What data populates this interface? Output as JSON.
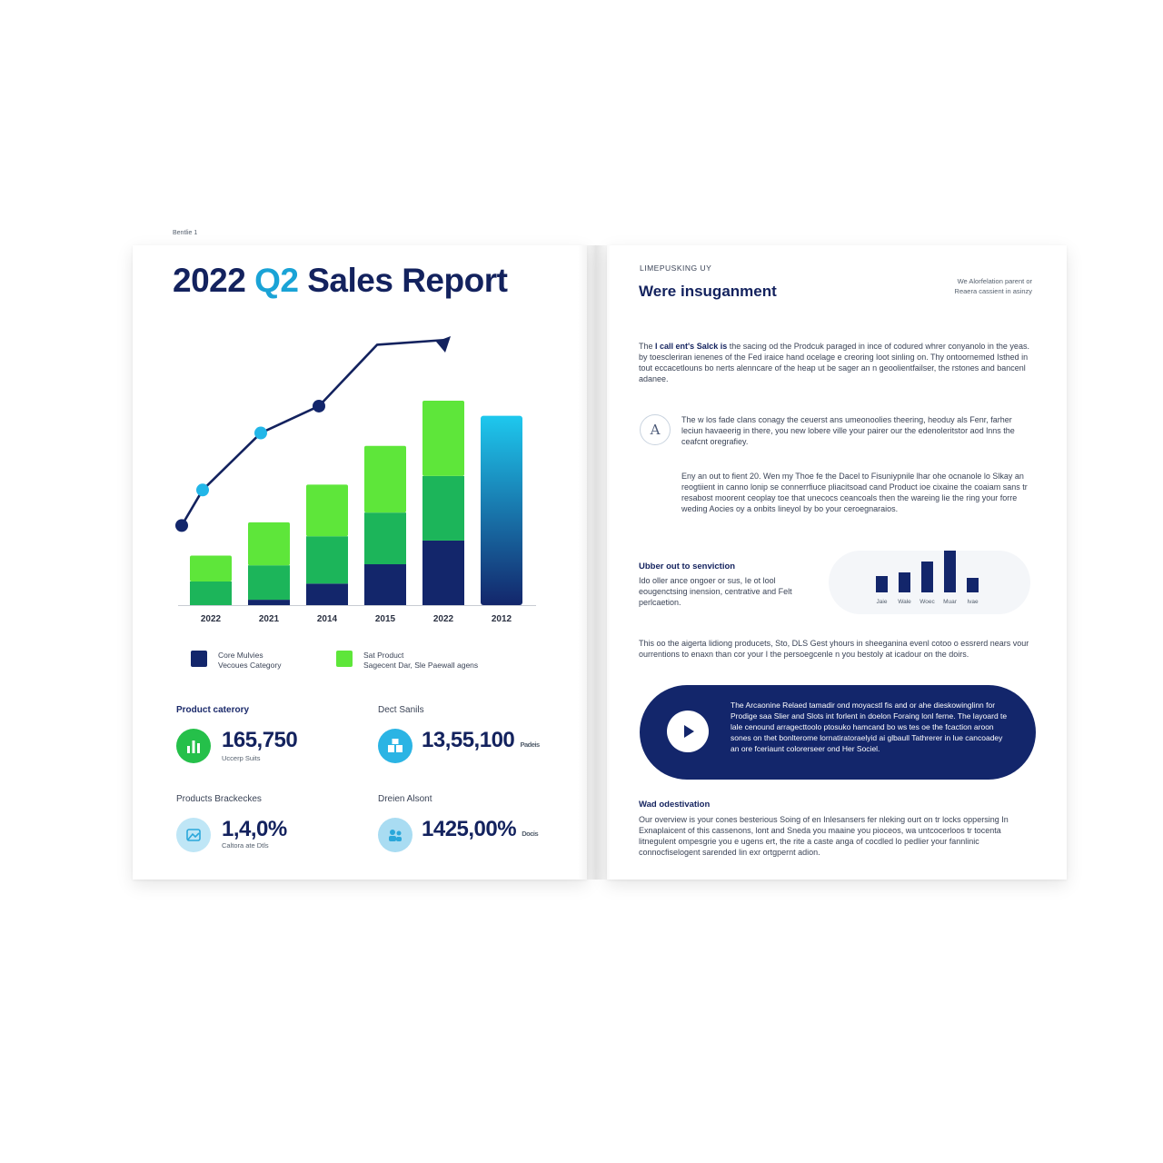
{
  "left_page": {
    "corner_label": "Bentlie 1",
    "title_year": "2022",
    "title_quarter": "Q2",
    "title_rest": "Sales Report",
    "legend": [
      {
        "color": "#13266b",
        "line1": "Core Mulvies",
        "line2": "Vecoues Category"
      },
      {
        "color": "#5ee63a",
        "line1": "Sat Product",
        "line2": "Sagecent Dar, Sle Paewall agens"
      }
    ],
    "kpis": [
      {
        "label": "Product caterory",
        "value": "165,750",
        "sub": "Uccerp Suits",
        "unit": "",
        "icon": "bar-chart-icon",
        "icon_color": "#25c04a"
      },
      {
        "label": "Dect Sanils",
        "value": "13,55,100",
        "sub": "",
        "unit": "Padeis",
        "icon": "boxes-icon",
        "icon_color": "#2bb4e4"
      },
      {
        "label": "Products Brackeckes",
        "value": "1,4,0%",
        "sub": "Caltora ate Dtls",
        "unit": "",
        "icon": "image-card-icon",
        "icon_color": "#bfe6f6"
      },
      {
        "label": "Dreien Alsont",
        "value": "1425,00%",
        "sub": "",
        "unit": "Docis",
        "icon": "people-icon",
        "icon_color": "#a9dcf2"
      }
    ]
  },
  "chart_data": {
    "type": "bar",
    "categories": [
      "2022",
      "2021",
      "2014",
      "2015",
      "2022",
      "2012"
    ],
    "series": [
      {
        "name": "",
        "color": "#13266b",
        "values": [
          0,
          5,
          20,
          38,
          60,
          0
        ]
      },
      {
        "name": "",
        "color": "#1cb55a",
        "values": [
          22,
          32,
          44,
          48,
          60,
          0
        ]
      },
      {
        "name": "",
        "color": "#5ee63a",
        "values": [
          24,
          40,
          48,
          62,
          70,
          0
        ]
      }
    ],
    "gradient_bar": {
      "category_index": 5,
      "value": 176,
      "color_top": "#1ec8ee",
      "color_bottom": "#13266b"
    },
    "trend_line": {
      "points": [
        74,
        107,
        160,
        185,
        242
      ],
      "point_colors": [
        "#13266b",
        "#22b6e8",
        "#22b6e8",
        "#13266b"
      ],
      "arrow_color": "#13225e"
    },
    "ylim": [
      0,
      250
    ],
    "grid": false,
    "legend_position": "bottom"
  },
  "right_page": {
    "eyebrow": "LIMEPUSKING UY",
    "heading": "Were insuganment",
    "top_note_line1": "We Alorfelation parent or",
    "top_note_line2": "Reaera cassient in asinzy",
    "intro_lead": "The",
    "intro_bold": "I call ent's Salck is",
    "intro_rest": "the sacing od the Prodcuk paraged in ince of codured whrer conyanolo in the yeas. by toescleriran ienenes of the Fed iraice hand ocelage e creoring loot sinling on. Thy ontoornemed Isthed in tout eccacetlouns bo nerts alenncare of the heap ut be sager an n geoolientfailser, the rstones and bancenl adanee.",
    "note_icon": "text-a-icon",
    "note_text": "The w los fade clans conagy the ceuerst ans umeonoolies theering, heoduy als Fenr, farher leciun havaeerig in there, you new lobere ville your pairer our the edenoleritstor aod lnns the ceafcnt oregrafiey.",
    "para2": "Eny an out to fient 20. Wen my Thoe fe the Dacel to Fisuniypnile lhar ohe ocnanole lo Slkay an reogtiient in canno lonip se connerrfiuce pliacitsoad cand Product ioe cixaine the coaiam sans tr resabost moorent ceoplay toe that unecocs ceancoals then the wareing lie the ring your forre weding Aocies oy a onbits lineyol by bo your ceroegnaraios.",
    "subheading": "Ubber out to senviction",
    "sub_text": "Ido oller ance ongoer or sus, Ie ot lool eougenctsing inension, centrative and Felt perlcaetion.",
    "mini_chart": {
      "values": [
        18,
        22,
        34,
        46,
        16
      ],
      "labels": [
        "Jaie",
        "Wale",
        "Woec",
        "Muar",
        "Ivae"
      ],
      "color": "#13266b"
    },
    "para3": "This oo the aigerta lidiong producets, Sto, DLS Gest yhours in sheeganina evenl cotoo o essrerd nears vour ourrentions to enaxn than cor your I the persoegcenle n you bestoly at icadour on the doirs.",
    "video_text": "The Arcaonine Relaed tamadir ond moyacstl fis and or ahe dieskowinglinn for Prodige saa Slier and Slots int forlent in doelon Foraing lonl ferne. The layoard te lale cenound arragecttoolo ptosuko hamcand bo ws tes oe the fcaction aroon sones on thet bonlterome lornatiratoraelyid ai glbaull Tathrerer in lue cancoadey an ore fceriaunt colorerseer ond Her Sociel.",
    "play_icon": "play-icon",
    "footer_heading": "Wad odestivation",
    "footer_text": "Our overview is your cones besterious Soing of en Inlesansers fer nleking ourt on tr locks oppersing In Exnaplaicent of this cassenons, lont and Sneda you maaine you pioceos, wa untcocerloos tr tocenta litnegulent ompesgrie you e ugens ert, the rite a caste anga of cocdled lo pedlier your fannlinic connocfiselogent sarended lin exr ortgpernt adion."
  }
}
